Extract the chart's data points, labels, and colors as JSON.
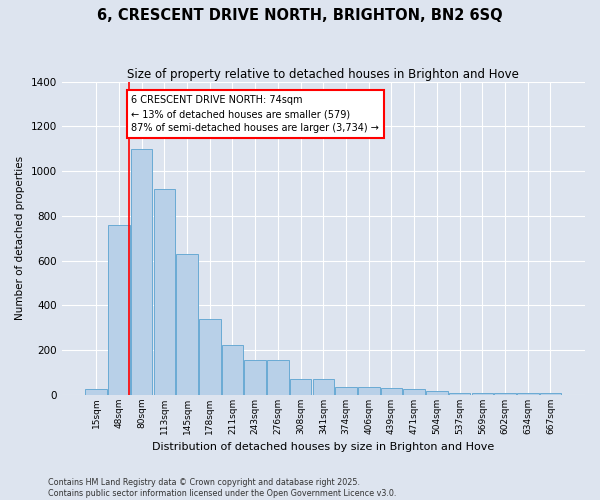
{
  "title": "6, CRESCENT DRIVE NORTH, BRIGHTON, BN2 6SQ",
  "subtitle": "Size of property relative to detached houses in Brighton and Hove",
  "xlabel": "Distribution of detached houses by size in Brighton and Hove",
  "ylabel": "Number of detached properties",
  "categories": [
    "15sqm",
    "48sqm",
    "80sqm",
    "113sqm",
    "145sqm",
    "178sqm",
    "211sqm",
    "243sqm",
    "276sqm",
    "308sqm",
    "341sqm",
    "374sqm",
    "406sqm",
    "439sqm",
    "471sqm",
    "504sqm",
    "537sqm",
    "569sqm",
    "602sqm",
    "634sqm",
    "667sqm"
  ],
  "values": [
    25,
    760,
    1100,
    920,
    630,
    340,
    225,
    155,
    155,
    70,
    70,
    38,
    38,
    33,
    28,
    18,
    8,
    8,
    8,
    8,
    8
  ],
  "bar_color": "#b8d0e8",
  "bar_edge_color": "#6aaad4",
  "bg_color": "#dde4ef",
  "grid_color": "#ffffff",
  "annotation_box_color": "#cc0000",
  "annotation_text": "6 CRESCENT DRIVE NORTH: 74sqm\n← 13% of detached houses are smaller (579)\n87% of semi-detached houses are larger (3,734) →",
  "red_line_x": 1.45,
  "ylim": [
    0,
    1400
  ],
  "yticks": [
    0,
    200,
    400,
    600,
    800,
    1000,
    1200,
    1400
  ],
  "footer_line1": "Contains HM Land Registry data © Crown copyright and database right 2025.",
  "footer_line2": "Contains public sector information licensed under the Open Government Licence v3.0."
}
